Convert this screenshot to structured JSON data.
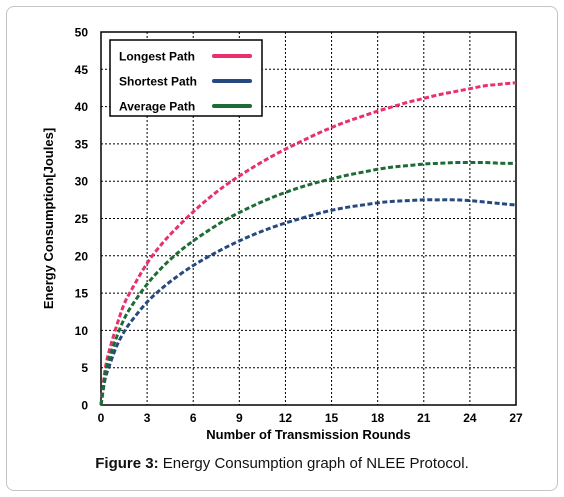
{
  "caption": {
    "label": "Figure 3:",
    "text": "Energy Consumption graph of NLEE Protocol."
  },
  "chart_data": {
    "type": "line",
    "title": "",
    "xlabel": "Number of Transmission Rounds",
    "ylabel": "Energy Consumption[Joules]",
    "xlim": [
      0,
      27
    ],
    "ylim": [
      0,
      50
    ],
    "xticks": [
      0,
      3,
      6,
      9,
      12,
      15,
      18,
      21,
      24,
      27
    ],
    "yticks": [
      0,
      5,
      10,
      15,
      20,
      25,
      30,
      35,
      40,
      45,
      50
    ],
    "grid": true,
    "grid_style": "dashed",
    "legend_position": "top-left",
    "x": [
      0,
      0.25,
      0.5,
      1,
      1.5,
      2,
      3,
      4,
      5,
      6,
      7,
      8,
      9,
      10,
      11,
      12,
      13,
      14,
      15,
      16,
      17,
      18,
      19,
      20,
      21,
      22,
      23,
      24,
      25,
      26,
      27
    ],
    "series": [
      {
        "name": "Longest Path",
        "color": "#e8306a",
        "values": [
          0,
          4.5,
          7,
          10.5,
          13.5,
          15.5,
          19,
          21.7,
          23.9,
          25.9,
          27.7,
          29.3,
          30.7,
          32,
          33.2,
          34.3,
          35.3,
          36.3,
          37.2,
          38,
          38.7,
          39.4,
          40,
          40.6,
          41.1,
          41.6,
          42,
          42.4,
          42.8,
          43,
          43.2
        ]
      },
      {
        "name": "Shortest Path",
        "color": "#264a80",
        "values": [
          0,
          3.3,
          5,
          7.8,
          9.8,
          11.3,
          13.8,
          15.7,
          17.3,
          18.7,
          19.9,
          21,
          22,
          22.9,
          23.7,
          24.4,
          25,
          25.6,
          26.1,
          26.5,
          26.8,
          27.1,
          27.3,
          27.4,
          27.5,
          27.5,
          27.5,
          27.4,
          27.2,
          27,
          26.8
        ]
      },
      {
        "name": "Average Path",
        "color": "#1e6b35",
        "values": [
          0,
          3.8,
          6,
          9,
          11.5,
          13.3,
          16.2,
          18.5,
          20.4,
          22,
          23.4,
          24.7,
          25.8,
          26.8,
          27.7,
          28.5,
          29.2,
          29.8,
          30.3,
          30.8,
          31.2,
          31.6,
          31.9,
          32.1,
          32.3,
          32.4,
          32.5,
          32.5,
          32.5,
          32.4,
          32.4
        ]
      }
    ]
  }
}
